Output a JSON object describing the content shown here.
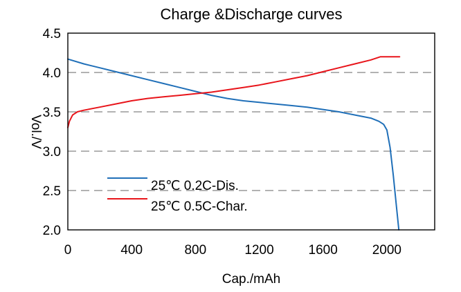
{
  "chart_data": {
    "type": "line",
    "title": "Charge &Discharge curves",
    "xlabel": "Cap./mAh",
    "ylabel": "Vol./V",
    "xlim": [
      0,
      2300
    ],
    "ylim": [
      2.0,
      4.5
    ],
    "x_ticks": [
      0,
      400,
      800,
      1200,
      1600,
      2000
    ],
    "x_tick_labels": [
      "0",
      "400",
      "800",
      "1200",
      "1600",
      "2000"
    ],
    "y_ticks": [
      2.0,
      2.5,
      3.0,
      3.5,
      4.0,
      4.5
    ],
    "y_tick_labels": [
      "2.0",
      "2.5",
      "3.0",
      "3.5",
      "4.0",
      "4.5"
    ],
    "grid": "horizontal dashed",
    "legend_position": "bottom-left",
    "series": [
      {
        "name": "25℃ 0.2C-Dis.",
        "color": "#1f6fb8",
        "points": [
          [
            0,
            4.17
          ],
          [
            100,
            4.11
          ],
          [
            200,
            4.06
          ],
          [
            300,
            4.01
          ],
          [
            400,
            3.96
          ],
          [
            500,
            3.91
          ],
          [
            600,
            3.86
          ],
          [
            700,
            3.81
          ],
          [
            800,
            3.76
          ],
          [
            900,
            3.71
          ],
          [
            1000,
            3.67
          ],
          [
            1100,
            3.64
          ],
          [
            1200,
            3.62
          ],
          [
            1300,
            3.6
          ],
          [
            1400,
            3.58
          ],
          [
            1500,
            3.56
          ],
          [
            1600,
            3.53
          ],
          [
            1700,
            3.5
          ],
          [
            1800,
            3.46
          ],
          [
            1900,
            3.42
          ],
          [
            1950,
            3.38
          ],
          [
            1980,
            3.34
          ],
          [
            2000,
            3.27
          ],
          [
            2020,
            3.05
          ],
          [
            2040,
            2.7
          ],
          [
            2060,
            2.3
          ],
          [
            2075,
            2.0
          ]
        ]
      },
      {
        "name": "25℃ 0.5C-Char.",
        "color": "#e8141a",
        "points": [
          [
            0,
            3.3
          ],
          [
            10,
            3.38
          ],
          [
            30,
            3.46
          ],
          [
            60,
            3.5
          ],
          [
            100,
            3.52
          ],
          [
            200,
            3.56
          ],
          [
            300,
            3.6
          ],
          [
            400,
            3.64
          ],
          [
            500,
            3.67
          ],
          [
            600,
            3.69
          ],
          [
            700,
            3.71
          ],
          [
            800,
            3.73
          ],
          [
            900,
            3.75
          ],
          [
            1000,
            3.78
          ],
          [
            1100,
            3.81
          ],
          [
            1200,
            3.84
          ],
          [
            1300,
            3.88
          ],
          [
            1400,
            3.92
          ],
          [
            1500,
            3.96
          ],
          [
            1600,
            4.01
          ],
          [
            1700,
            4.06
          ],
          [
            1800,
            4.11
          ],
          [
            1900,
            4.16
          ],
          [
            1960,
            4.2
          ],
          [
            2080,
            4.2
          ]
        ]
      }
    ]
  }
}
